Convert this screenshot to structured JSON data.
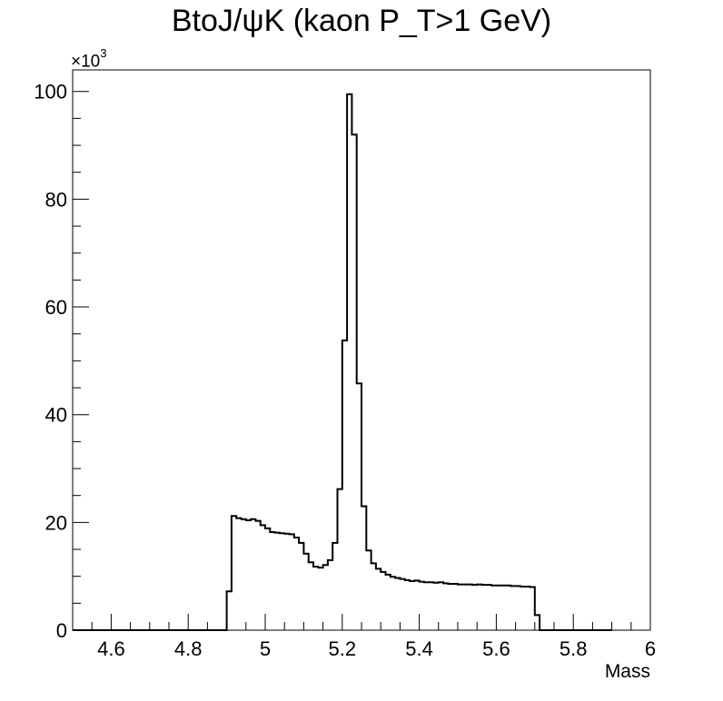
{
  "chart_data": {
    "type": "histogram",
    "title": "BtoJ/ψK (kaon P_T>1 GeV)",
    "xlabel": "Mass",
    "ylabel": "",
    "y_multiplier_label": "×10",
    "y_multiplier_exponent": "3",
    "xlim": [
      4.5,
      6.0
    ],
    "ylim": [
      0,
      104
    ],
    "xticks": [
      4.6,
      4.8,
      5,
      5.2,
      5.4,
      5.6,
      5.8,
      6
    ],
    "xtick_labels": [
      "4.6",
      "4.8",
      "5",
      "5.2",
      "5.4",
      "5.6",
      "5.8",
      "6"
    ],
    "yticks": [
      0,
      20,
      40,
      60,
      80,
      100
    ],
    "ytick_labels": [
      "0",
      "20",
      "40",
      "60",
      "80",
      "100"
    ],
    "bin_width": 0.0125,
    "bin_edges_start": 4.5,
    "series": [
      {
        "values": [
          0,
          0,
          0,
          0,
          0,
          0,
          0,
          0,
          0,
          0,
          0,
          0,
          0,
          0,
          0,
          0,
          0,
          0,
          0,
          0,
          0,
          0,
          0,
          0,
          0,
          0,
          0,
          0,
          0,
          0,
          0,
          0,
          7.2,
          21.2,
          20.8,
          20.6,
          20.4,
          20.6,
          20.3,
          19.5,
          18.9,
          18.2,
          18.1,
          18.0,
          17.9,
          17.8,
          17.2,
          16.2,
          14.2,
          12.6,
          11.8,
          11.6,
          12.1,
          13.0,
          16.2,
          26.2,
          53.8,
          99.5,
          92.0,
          45.8,
          23.0,
          14.8,
          12.4,
          11.4,
          10.8,
          10.3,
          9.9,
          9.7,
          9.5,
          9.3,
          9.1,
          9.2,
          9.0,
          8.9,
          8.9,
          8.8,
          8.9,
          8.7,
          8.6,
          8.6,
          8.5,
          8.5,
          8.5,
          8.4,
          8.5,
          8.4,
          8.4,
          8.3,
          8.3,
          8.3,
          8.3,
          8.2,
          8.2,
          8.1,
          8.1,
          8.0,
          2.8,
          0,
          0,
          0,
          0,
          0,
          0,
          0,
          0,
          0,
          0,
          0,
          0,
          0,
          0,
          0
        ]
      }
    ]
  }
}
